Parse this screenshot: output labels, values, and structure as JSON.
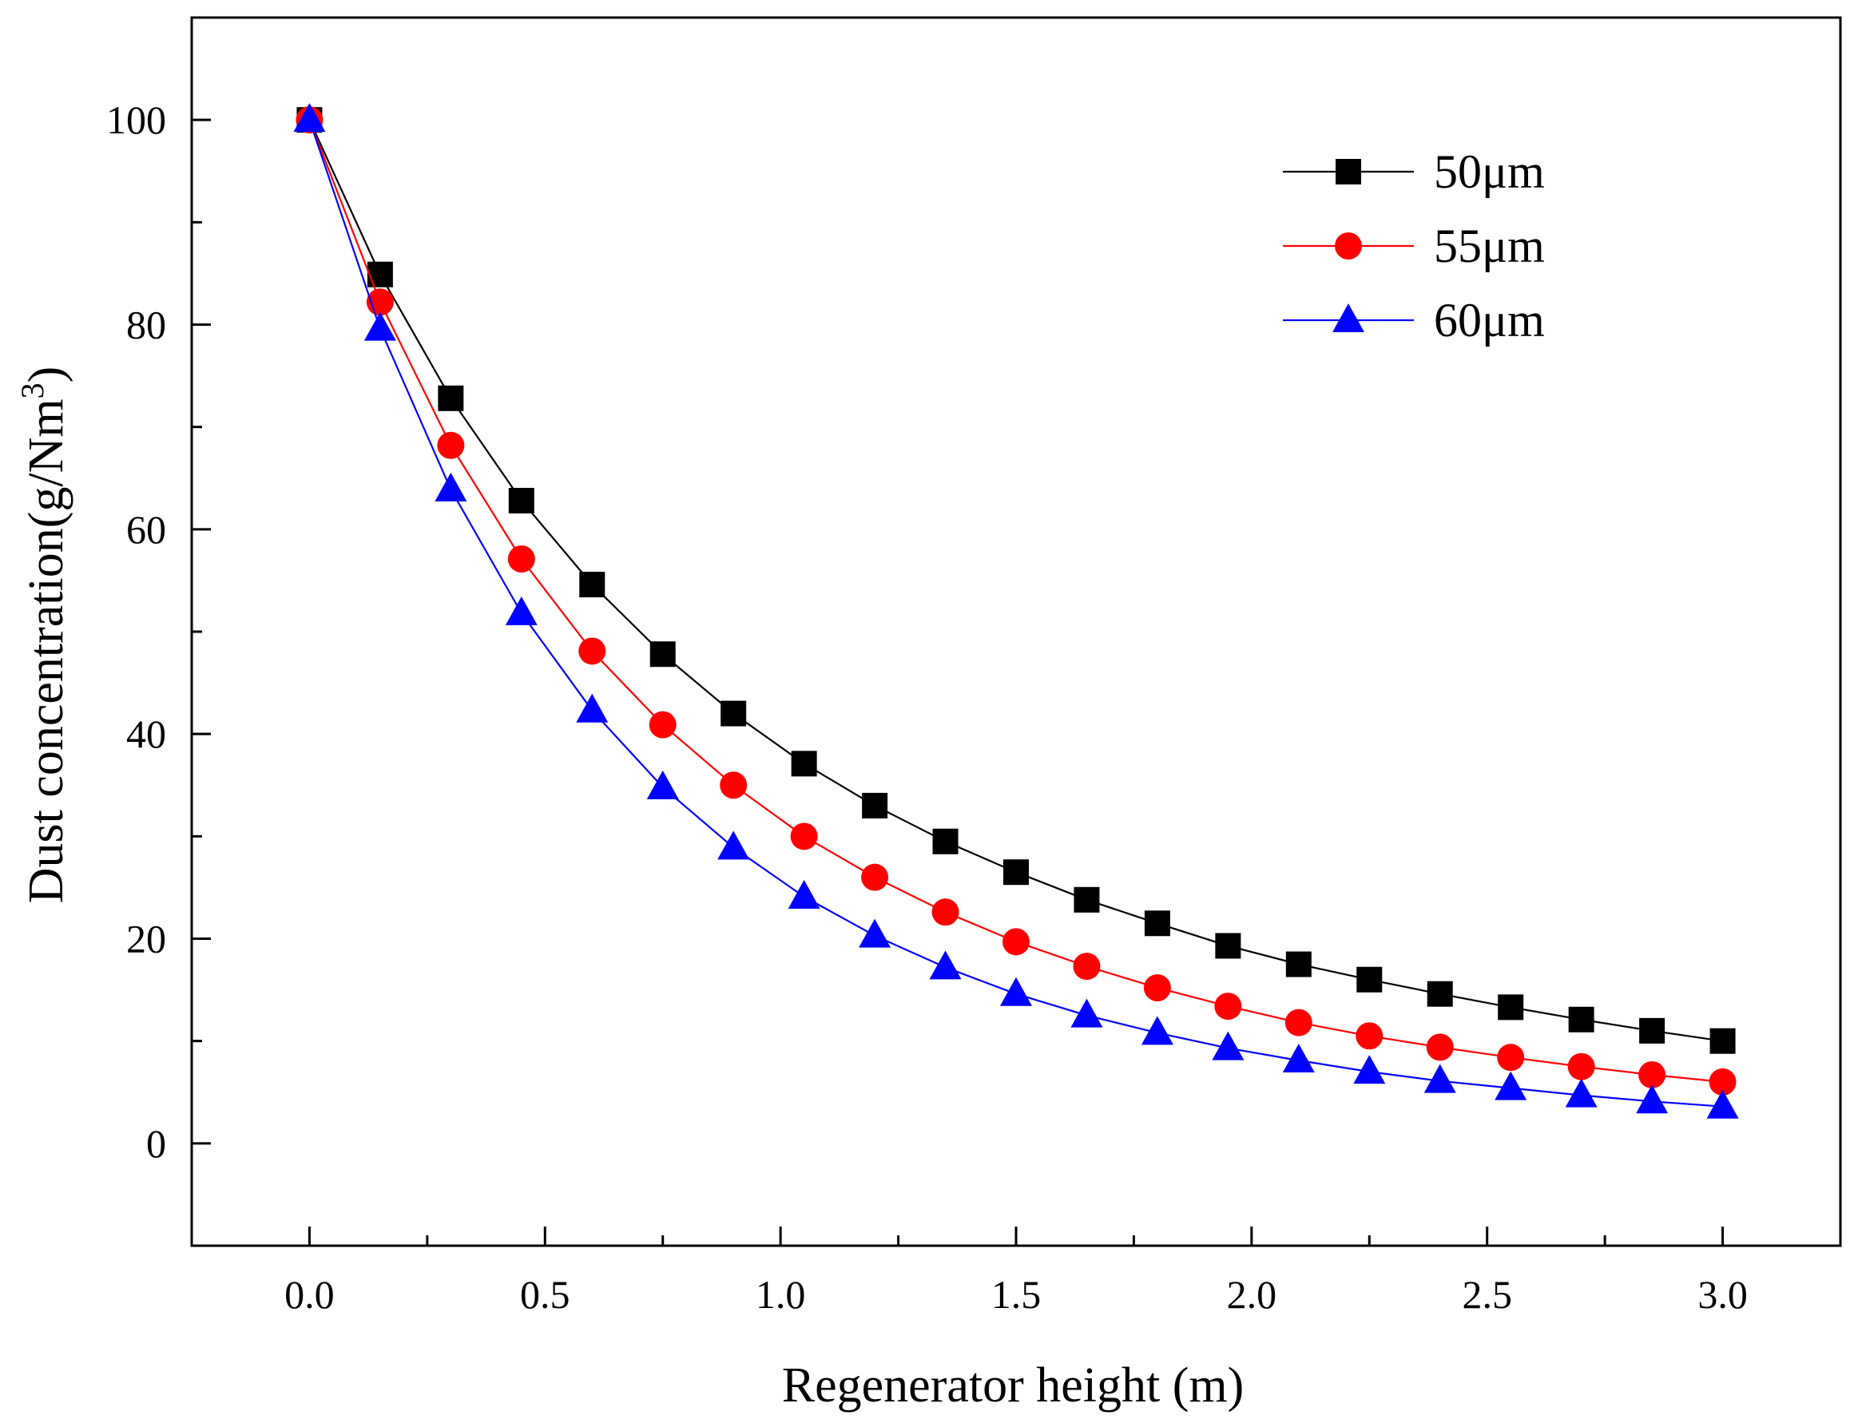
{
  "chart_data": {
    "type": "line",
    "title": "",
    "xlabel": "Regenerator height (m)",
    "ylabel_main": "Dust concentration(g/Nm",
    "ylabel_sup": "3",
    "ylabel_close": ")",
    "xlim": [
      -0.25,
      3.25
    ],
    "ylim": [
      -10,
      110
    ],
    "xticks": [
      0.0,
      0.5,
      1.0,
      1.5,
      2.0,
      2.5,
      3.0
    ],
    "xtick_labels": [
      "0.0",
      "0.5",
      "1.0",
      "1.5",
      "2.0",
      "2.5",
      "3.0"
    ],
    "yticks": [
      0,
      20,
      40,
      60,
      80,
      100
    ],
    "ytick_labels": [
      "0",
      "20",
      "40",
      "60",
      "80",
      "100"
    ],
    "grid": false,
    "legend_position": "top-right",
    "x": [
      0.0,
      0.15,
      0.3,
      0.45,
      0.6,
      0.75,
      0.9,
      1.05,
      1.2,
      1.35,
      1.5,
      1.65,
      1.8,
      1.95,
      2.1,
      2.25,
      2.4,
      2.55,
      2.7,
      2.85,
      3.0
    ],
    "series": [
      {
        "name": "50μm",
        "color": "#000000",
        "marker": "square",
        "values": [
          100,
          84.9,
          72.8,
          62.8,
          54.6,
          47.8,
          42.0,
          37.1,
          33.0,
          29.5,
          26.5,
          23.8,
          21.5,
          19.3,
          17.5,
          16.0,
          14.6,
          13.3,
          12.1,
          11.0,
          10.0
        ]
      },
      {
        "name": "55μm",
        "color": "#ff0000",
        "marker": "circle",
        "values": [
          100,
          82.2,
          68.2,
          57.1,
          48.1,
          40.9,
          35.0,
          30.0,
          26.0,
          22.6,
          19.7,
          17.3,
          15.2,
          13.4,
          11.8,
          10.5,
          9.4,
          8.4,
          7.5,
          6.7,
          6.0
        ]
      },
      {
        "name": "60μm",
        "color": "#0000ff",
        "marker": "triangle",
        "values": [
          100,
          79.6,
          63.9,
          51.8,
          42.3,
          34.8,
          28.9,
          24.1,
          20.3,
          17.2,
          14.6,
          12.5,
          10.8,
          9.3,
          8.1,
          7.0,
          6.1,
          5.4,
          4.7,
          4.1,
          3.6
        ]
      }
    ]
  }
}
